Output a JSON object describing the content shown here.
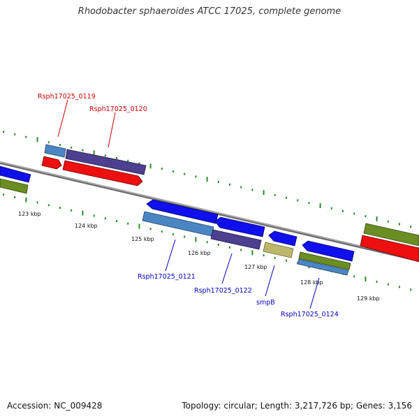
{
  "title": "Rhodobacter sphaeroides ATCC 17025, complete genome",
  "footer": {
    "accession": "Accession: NC_009428",
    "info": "Topology: circular; Length: 3,217,726 bp; Genes: 3,156"
  },
  "colors": {
    "backbone": "#808080",
    "tick": "#2a8a2a",
    "label_top": "#cc0000",
    "label_bottom": "#0000bb",
    "arrow_blue": "#1010ee",
    "arrow_red": "#ee1010",
    "bar_steelblue": "#4a86c4",
    "bar_purple": "#4c3f8f",
    "bar_olive": "#6b8e23",
    "bar_khaki": "#bdb76b"
  },
  "scale_labels": [
    "123 kbp",
    "124 kbp",
    "125 kbp",
    "126 kbp",
    "127 kbp",
    "128 kbp",
    "129 kbp"
  ],
  "gene_labels_top": [
    "Rsph17025_0119",
    "Rsph17025_0120"
  ],
  "gene_labels_bottom": [
    "Rsph17025_0121",
    "Rsph17025_0122",
    "smpB",
    "Rsph17025_0124"
  ]
}
